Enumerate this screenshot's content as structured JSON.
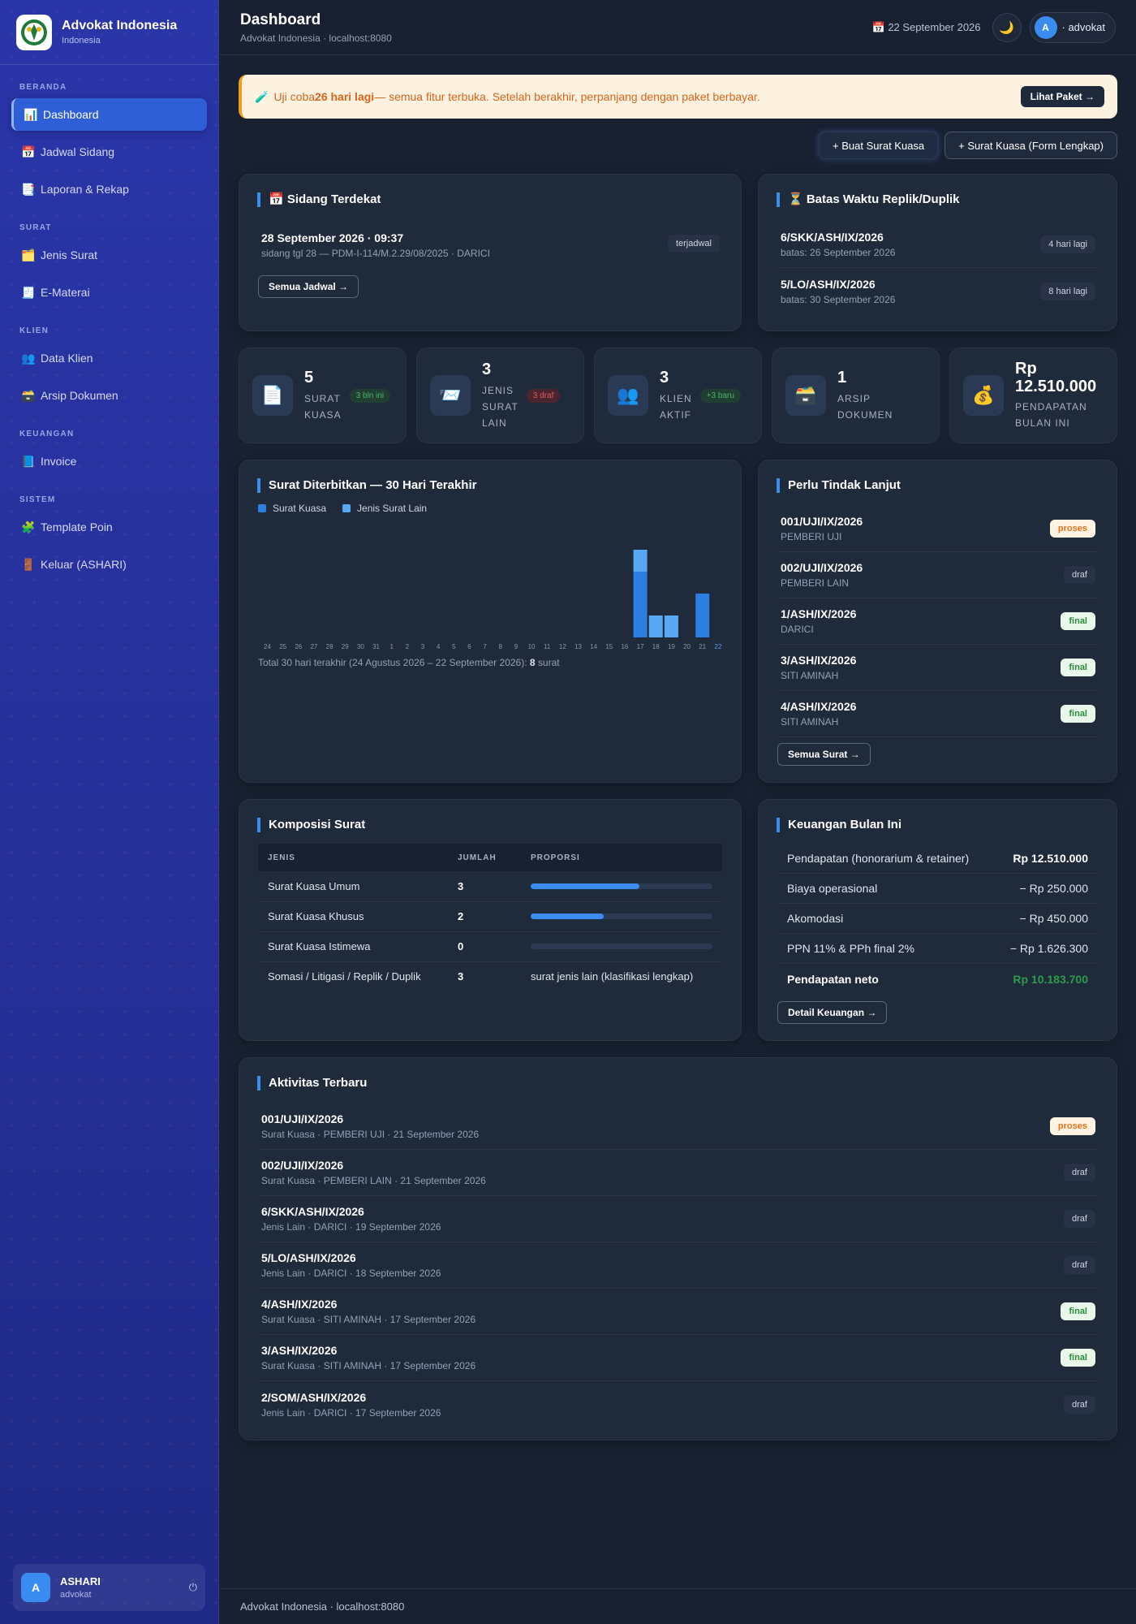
{
  "brand": {
    "title": "Advokat Indonesia",
    "subtitle": "Indonesia"
  },
  "nav": [
    {
      "group": "BERANDA",
      "items": [
        {
          "icon": "📊",
          "label": "Dashboard",
          "name": "dashboard",
          "active": true
        }
      ]
    },
    {
      "group": "",
      "items": [
        {
          "icon": "📅",
          "label": "Jadwal Sidang",
          "name": "jadwal-sidang"
        },
        {
          "icon": "📑",
          "label": "Laporan & Rekap",
          "name": "laporan-rekap"
        }
      ]
    },
    {
      "group": "SURAT",
      "items": [
        {
          "icon": "🗂️",
          "label": "Jenis Surat",
          "name": "jenis-surat"
        },
        {
          "icon": "🧾",
          "label": "E-Materai",
          "name": "e-materai"
        }
      ]
    },
    {
      "group": "KLIEN",
      "items": [
        {
          "icon": "👥",
          "label": "Data Klien",
          "name": "data-klien"
        },
        {
          "icon": "🗃️",
          "label": "Arsip Dokumen",
          "name": "arsip-dokumen"
        }
      ]
    },
    {
      "group": "KEUANGAN",
      "items": [
        {
          "icon": "📘",
          "label": "Invoice",
          "name": "invoice"
        }
      ]
    },
    {
      "group": "SISTEM",
      "items": [
        {
          "icon": "🧩",
          "label": "Template Poin",
          "name": "template-poin"
        },
        {
          "icon": "🚪",
          "label": "Keluar (ASHARI)",
          "name": "keluar"
        }
      ]
    }
  ],
  "user": {
    "initial": "A",
    "name": "ASHARI",
    "role": "advokat",
    "pill": "· advokat",
    "power": "⏻"
  },
  "topbar": {
    "title": "Dashboard",
    "subtitle": "Advokat Indonesia · localhost:8080",
    "date": "📅 22 September 2026",
    "theme_icon": "🌙"
  },
  "trial": {
    "icon": "🧪",
    "pre": "Uji coba ",
    "bold": "26 hari lagi",
    "post": " — semua fitur terbuka. Setelah berakhir, perpanjang dengan paket berbayar.",
    "button": "Lihat Paket →"
  },
  "actions": {
    "primary": "+ Buat Surat Kuasa",
    "secondary": "+ Surat Kuasa (Form Lengkap)"
  },
  "sidang": {
    "title": "📅 Sidang Terdekat",
    "date": "28 September 2026 · 09:37",
    "detail": "sidang tgl 28 — PDM-I-114/M.2.29/08/2025 · DARICI",
    "status": "terjadwal",
    "button": "Semua Jadwal →"
  },
  "batas": {
    "title": "⏳ Batas Waktu Replik/Duplik",
    "items": [
      {
        "no": "6/SKK/ASH/IX/2026",
        "sub": "batas: 26 September 2026",
        "badge": "4 hari lagi"
      },
      {
        "no": "5/LO/ASH/IX/2026",
        "sub": "batas: 30 September 2026",
        "badge": "8 hari lagi"
      }
    ]
  },
  "stats": [
    {
      "icon": "📄",
      "num": "5",
      "label": [
        "SURAT",
        "KUASA"
      ],
      "badge": "3 bln ini",
      "badge_type": "green",
      "name": "surat-kuasa"
    },
    {
      "icon": "📨",
      "num": "3",
      "label": [
        "JENIS",
        "SURAT",
        "LAIN"
      ],
      "badge": "3 draf",
      "badge_type": "red",
      "name": "jenis-surat-lain"
    },
    {
      "icon": "👥",
      "num": "3",
      "label": [
        "KLIEN",
        "AKTIF"
      ],
      "badge": "+3 baru",
      "badge_type": "green",
      "name": "klien-aktif"
    },
    {
      "icon": "🗃️",
      "num": "1",
      "label": [
        "ARSIP",
        "DOKUMEN"
      ],
      "badge": "",
      "badge_type": "",
      "name": "arsip-dokumen"
    },
    {
      "icon": "💰",
      "num": "Rp 12.510.000",
      "label": [
        "PENDAPATAN",
        "BULAN INI"
      ],
      "badge": "",
      "badge_type": "",
      "name": "pendapatan"
    }
  ],
  "chart_data": {
    "type": "bar",
    "title": "Surat Diterbitkan — 30 Hari Terakhir",
    "categories": [
      "24",
      "25",
      "26",
      "27",
      "28",
      "29",
      "30",
      "31",
      "1",
      "2",
      "3",
      "4",
      "5",
      "6",
      "7",
      "8",
      "9",
      "10",
      "11",
      "12",
      "13",
      "14",
      "15",
      "16",
      "17",
      "18",
      "19",
      "20",
      "21",
      "22"
    ],
    "series": [
      {
        "name": "Surat Kuasa",
        "color": "#2c7fe0",
        "values": [
          0,
          0,
          0,
          0,
          0,
          0,
          0,
          0,
          0,
          0,
          0,
          0,
          0,
          0,
          0,
          0,
          0,
          0,
          0,
          0,
          0,
          0,
          0,
          0,
          3,
          0,
          0,
          0,
          2,
          0
        ]
      },
      {
        "name": "Jenis Surat Lain",
        "color": "#58a8f5",
        "values": [
          0,
          0,
          0,
          0,
          0,
          0,
          0,
          0,
          0,
          0,
          0,
          0,
          0,
          0,
          0,
          0,
          0,
          0,
          0,
          0,
          0,
          0,
          0,
          0,
          1,
          1,
          1,
          0,
          0,
          0
        ]
      }
    ],
    "stacked": true,
    "highlight_category": "22",
    "footer_pre": "Total 30 hari terakhir (24 Agustus 2026 – 22 September 2026): ",
    "footer_bold": "8",
    "footer_post": " surat"
  },
  "tindak": {
    "title": "Perlu Tindak Lanjut",
    "items": [
      {
        "no": "001/UJI/IX/2026",
        "sub": "PEMBERI UJI",
        "status": "proses"
      },
      {
        "no": "002/UJI/IX/2026",
        "sub": "PEMBERI LAIN",
        "status": "draf"
      },
      {
        "no": "1/ASH/IX/2026",
        "sub": "DARICI",
        "status": "final"
      },
      {
        "no": "3/ASH/IX/2026",
        "sub": "SITI AMINAH",
        "status": "final"
      },
      {
        "no": "4/ASH/IX/2026",
        "sub": "SITI AMINAH",
        "status": "final"
      }
    ],
    "button": "Semua Surat →"
  },
  "komposisi": {
    "title": "Komposisi Surat",
    "headers": [
      "JENIS",
      "JUMLAH",
      "PROPORSI"
    ],
    "rows": [
      {
        "jenis": "Surat Kuasa Umum",
        "jumlah": "3",
        "proporsi": 0.6,
        "text": ""
      },
      {
        "jenis": "Surat Kuasa Khusus",
        "jumlah": "2",
        "proporsi": 0.4,
        "text": ""
      },
      {
        "jenis": "Surat Kuasa Istimewa",
        "jumlah": "0",
        "proporsi": 0,
        "text": ""
      },
      {
        "jenis": "Somasi / Litigasi / Replik / Duplik",
        "jumlah": "3",
        "proporsi": null,
        "text": "surat jenis lain (klasifikasi lengkap)"
      }
    ]
  },
  "keuangan": {
    "title": "Keuangan Bulan Ini",
    "rows": [
      {
        "label": "Pendapatan (honorarium & retainer)",
        "value": "Rp 12.510.000",
        "style": "bold"
      },
      {
        "label": "Biaya operasional",
        "value": "− Rp 250.000",
        "style": ""
      },
      {
        "label": "Akomodasi",
        "value": "− Rp 450.000",
        "style": ""
      },
      {
        "label": "PPN 11% & PPh final 2%",
        "value": "− Rp 1.626.300",
        "style": ""
      },
      {
        "label": "Pendapatan neto",
        "value": "Rp 10.183.700",
        "style": "net"
      }
    ],
    "button": "Detail Keuangan →"
  },
  "aktivitas": {
    "title": "Aktivitas Terbaru",
    "items": [
      {
        "no": "001/UJI/IX/2026",
        "sub": "Surat Kuasa · PEMBERI UJI · 21 September 2026",
        "status": "proses"
      },
      {
        "no": "002/UJI/IX/2026",
        "sub": "Surat Kuasa · PEMBERI LAIN · 21 September 2026",
        "status": "draf"
      },
      {
        "no": "6/SKK/ASH/IX/2026",
        "sub": "Jenis Lain · DARICI · 19 September 2026",
        "status": "draf"
      },
      {
        "no": "5/LO/ASH/IX/2026",
        "sub": "Jenis Lain · DARICI · 18 September 2026",
        "status": "draf"
      },
      {
        "no": "4/ASH/IX/2026",
        "sub": "Surat Kuasa · SITI AMINAH · 17 September 2026",
        "status": "final"
      },
      {
        "no": "3/ASH/IX/2026",
        "sub": "Surat Kuasa · SITI AMINAH · 17 September 2026",
        "status": "final"
      },
      {
        "no": "2/SOM/ASH/IX/2026",
        "sub": "Jenis Lain · DARICI · 17 September 2026",
        "status": "draf"
      }
    ]
  },
  "footer": "Advokat Indonesia · localhost:8080"
}
